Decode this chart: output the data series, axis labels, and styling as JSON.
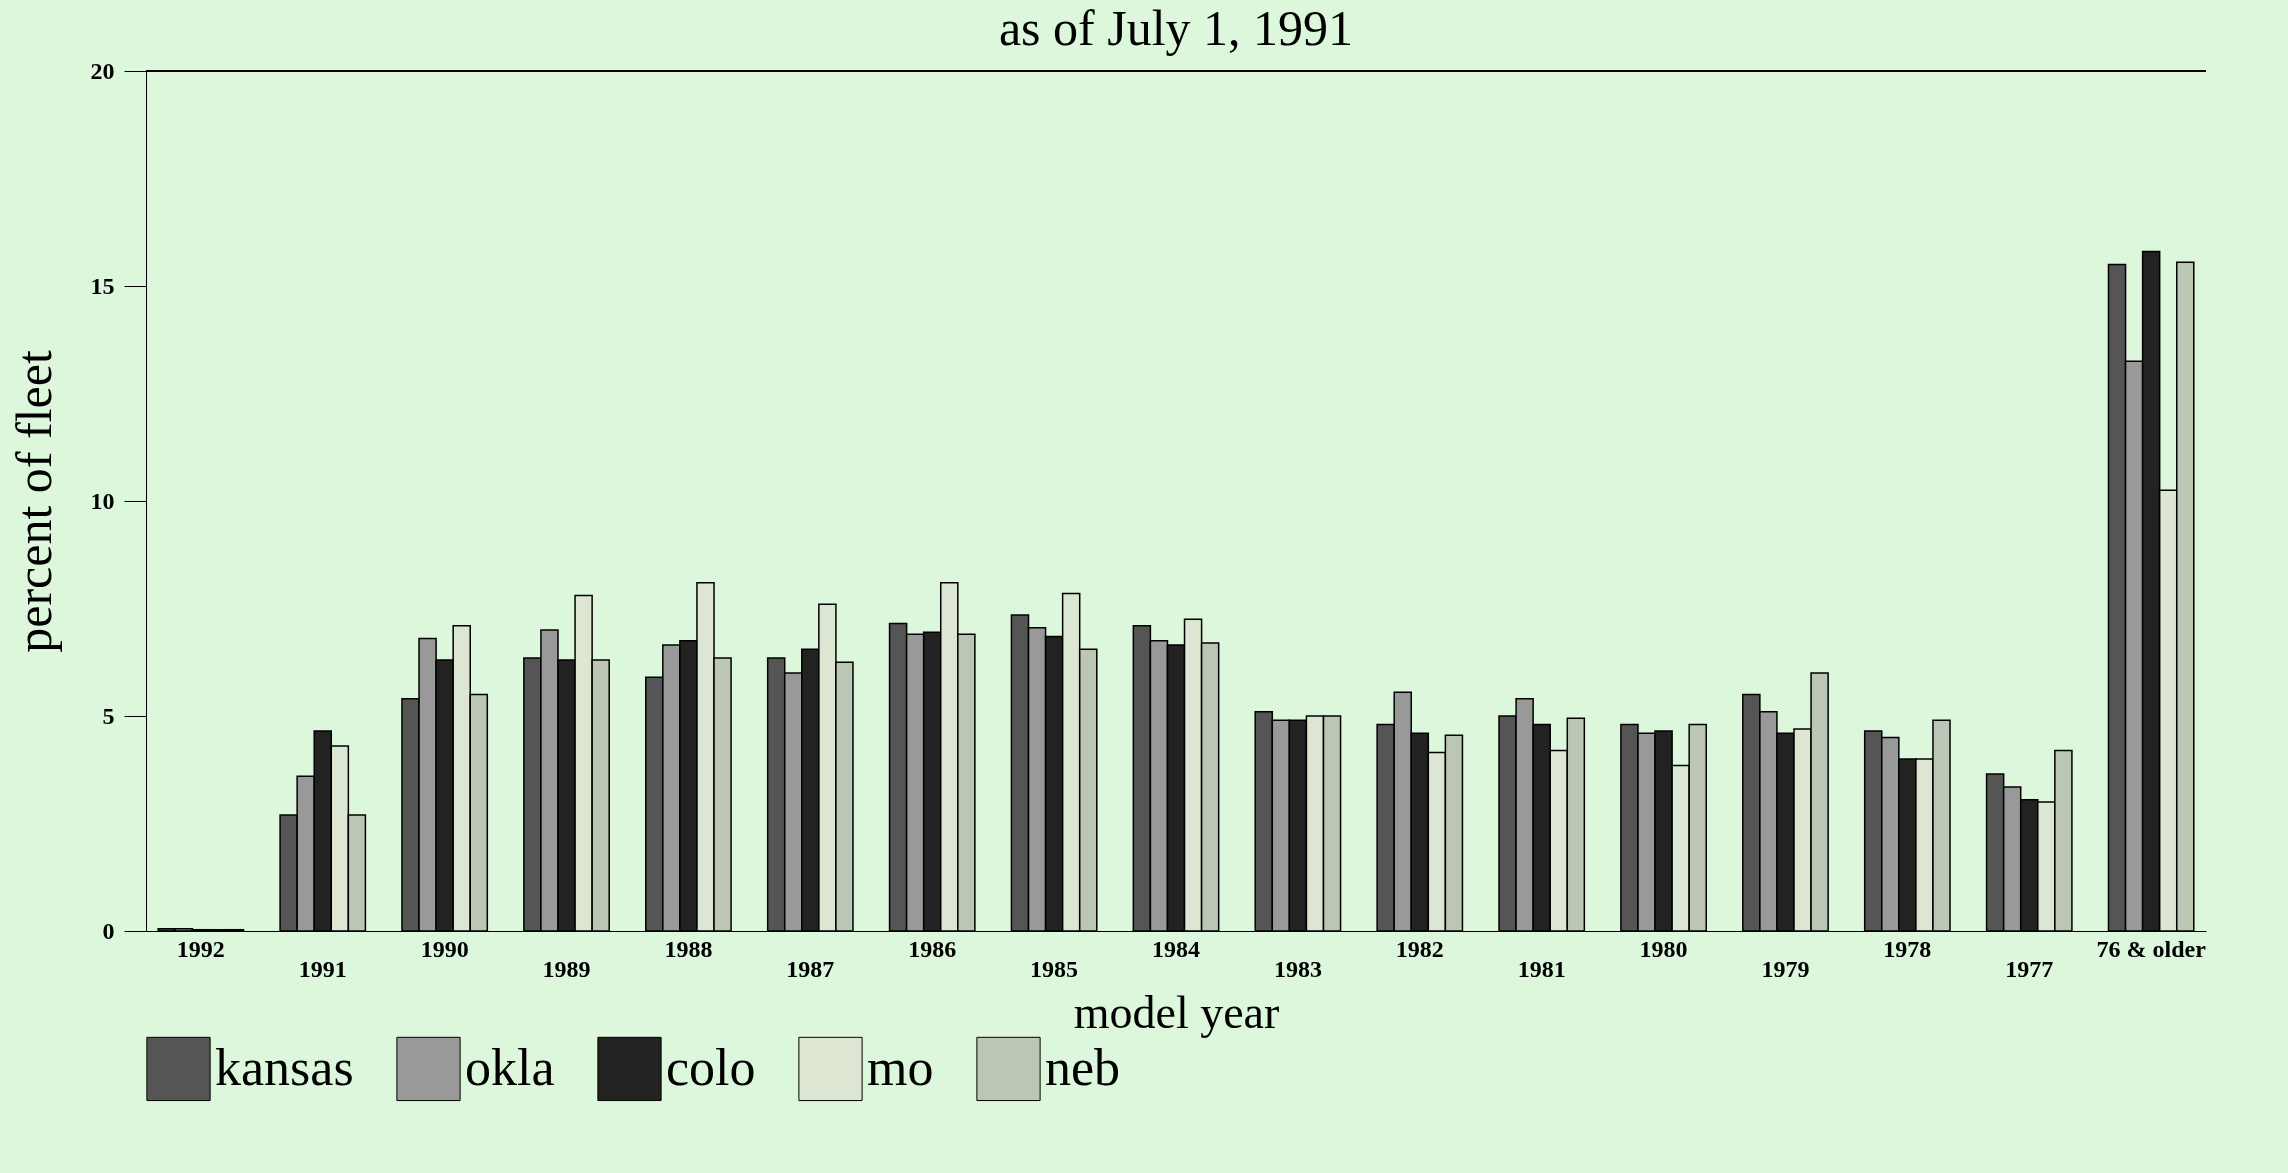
{
  "chart_data": {
    "type": "bar",
    "title": "as of July 1, 1991",
    "xlabel": "model year",
    "ylabel": "percent of fleet",
    "categories": [
      "1992",
      "1991",
      "1990",
      "1989",
      "1988",
      "1987",
      "1986",
      "1985",
      "1984",
      "1983",
      "1982",
      "1981",
      "1980",
      "1979",
      "1978",
      "1977",
      "76 & older"
    ],
    "series": [
      {
        "name": "kansas",
        "color": "#555555",
        "values": [
          0.05,
          2.7,
          5.4,
          6.35,
          5.9,
          6.35,
          7.15,
          7.35,
          7.1,
          5.1,
          4.8,
          5.0,
          4.8,
          5.5,
          4.65,
          3.65,
          15.5
        ]
      },
      {
        "name": "okla",
        "color": "#999999",
        "values": [
          0.05,
          3.6,
          6.8,
          7.0,
          6.65,
          6.0,
          6.9,
          7.05,
          6.75,
          4.9,
          5.55,
          5.4,
          4.6,
          5.1,
          4.5,
          3.35,
          13.25
        ]
      },
      {
        "name": "colo",
        "color": "#222222",
        "values": [
          0.03,
          4.65,
          6.3,
          6.3,
          6.75,
          6.55,
          6.95,
          6.85,
          6.65,
          4.9,
          4.6,
          4.8,
          4.65,
          4.6,
          4.0,
          3.05,
          15.8
        ]
      },
      {
        "name": "mo",
        "color": "#dce6d2",
        "values": [
          0.03,
          4.3,
          7.1,
          7.8,
          8.1,
          7.6,
          8.1,
          7.85,
          7.25,
          5.0,
          4.15,
          4.2,
          3.85,
          4.7,
          4.0,
          3.0,
          10.25
        ]
      },
      {
        "name": "neb",
        "color": "#bcc6b4",
        "values": [
          0.03,
          2.7,
          5.5,
          6.3,
          6.35,
          6.25,
          6.9,
          6.55,
          6.7,
          5.0,
          4.55,
          4.95,
          4.8,
          6.0,
          4.9,
          4.2,
          15.55
        ]
      }
    ],
    "ylim": [
      0,
      20
    ],
    "yticks": [
      0,
      5,
      10,
      15,
      20
    ],
    "grid": false,
    "legend": "bottom"
  }
}
